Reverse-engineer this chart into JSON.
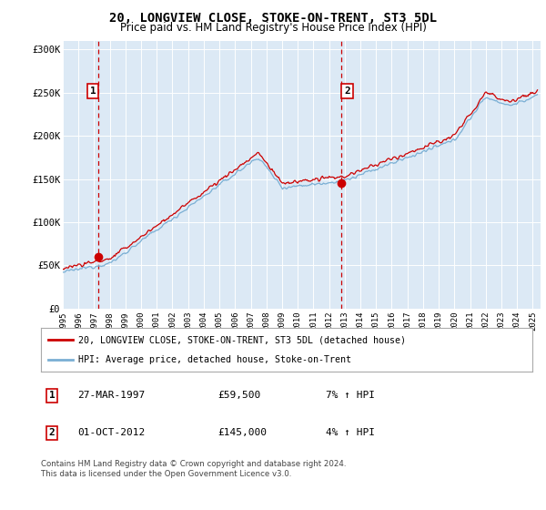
{
  "title": "20, LONGVIEW CLOSE, STOKE-ON-TRENT, ST3 5DL",
  "subtitle": "Price paid vs. HM Land Registry's House Price Index (HPI)",
  "ylim": [
    0,
    310000
  ],
  "yticks": [
    0,
    50000,
    100000,
    150000,
    200000,
    250000,
    300000
  ],
  "ytick_labels": [
    "£0",
    "£50K",
    "£100K",
    "£150K",
    "£200K",
    "£250K",
    "£300K"
  ],
  "legend_entries": [
    "20, LONGVIEW CLOSE, STOKE-ON-TRENT, ST3 5DL (detached house)",
    "HPI: Average price, detached house, Stoke-on-Trent"
  ],
  "hpi_line_color": "#7aafd4",
  "price_line_color": "#cc0000",
  "dashed_line_color": "#cc0000",
  "grid_color": "#ffffff",
  "plot_bg_color": "#dce9f5",
  "sale1_price": 59500,
  "sale1_year": 1997.24,
  "sale2_price": 145000,
  "sale2_year": 2012.75,
  "table_rows": [
    [
      "1",
      "27-MAR-1997",
      "£59,500",
      "7% ↑ HPI"
    ],
    [
      "2",
      "01-OCT-2012",
      "£145,000",
      "4% ↑ HPI"
    ]
  ],
  "footer": "Contains HM Land Registry data © Crown copyright and database right 2024.\nThis data is licensed under the Open Government Licence v3.0.",
  "title_fontsize": 10,
  "subtitle_fontsize": 8.5
}
